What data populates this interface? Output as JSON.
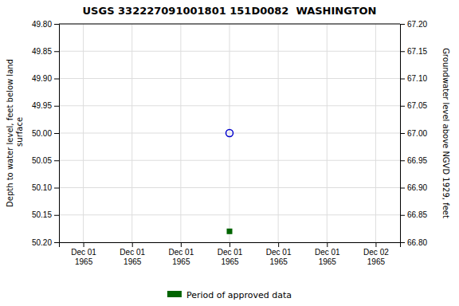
{
  "chart_data": {
    "type": "scatter",
    "title": "USGS 332227091001801 151D0082  WASHINGTON",
    "y_label": "Depth to water level, feet below land\n surface",
    "y2_label": "Groundwater level above NGVD 1929, feet",
    "categories": [
      "Dec 01\n1965",
      "Dec 01\n1965",
      "Dec 01\n1965",
      "Dec 01\n1965",
      "Dec 01\n1965",
      "Dec 01\n1965",
      "Dec 02\n1965"
    ],
    "series": [
      {
        "color": "#0000cc",
        "marker": "open-circle",
        "values": [
          null,
          null,
          null,
          50.0,
          null,
          null,
          null
        ]
      },
      {
        "name": "Period of approved data",
        "color": "#006400",
        "marker": "square",
        "values": [
          null,
          null,
          null,
          50.18,
          null,
          null,
          null
        ]
      }
    ],
    "ylim": [
      50.2,
      49.8
    ],
    "yticks": [
      {
        "value": 49.8,
        "label": "49.80"
      },
      49.85,
      {
        "value": 49.9,
        "label": "49.90"
      },
      49.95,
      {
        "value": 50.0,
        "label": "50.00"
      },
      50.05,
      {
        "value": 50.1,
        "label": "50.10"
      },
      50.15,
      {
        "value": 50.2,
        "label": "50.20"
      }
    ],
    "y2lim": [
      66.8,
      67.2
    ],
    "y2ticks": [
      {
        "value": 67.2,
        "label": "67.20"
      },
      67.15,
      {
        "value": 67.1,
        "label": "67.10"
      },
      67.05,
      {
        "value": 67.0,
        "label": "67.00"
      },
      66.95,
      {
        "value": 66.9,
        "label": "66.90"
      },
      66.85,
      {
        "value": 66.8,
        "label": "66.80"
      }
    ],
    "grid": true,
    "legend": "bottom"
  }
}
